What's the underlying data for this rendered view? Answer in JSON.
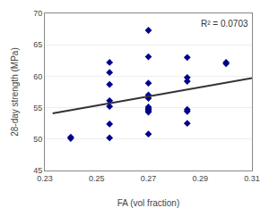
{
  "chart_data": {
    "type": "scatter",
    "xlabel": "FA (vol fraction)",
    "ylabel": "28-day strength (MPa)",
    "annotation": "R² = 0.0703",
    "xlim": [
      0.23,
      0.31
    ],
    "ylim": [
      45,
      70
    ],
    "xticks": [
      0.23,
      0.25,
      0.27,
      0.29,
      0.31
    ],
    "yticks": [
      45,
      50,
      55,
      60,
      65,
      70
    ],
    "grid": "y",
    "series": [
      {
        "type": "scatter",
        "color": "#00008B",
        "marker": "diamond",
        "x": [
          0.24,
          0.24,
          0.255,
          0.255,
          0.255,
          0.255,
          0.255,
          0.255,
          0.255,
          0.27,
          0.27,
          0.27,
          0.27,
          0.27,
          0.27,
          0.27,
          0.27,
          0.27,
          0.27,
          0.27,
          0.285,
          0.285,
          0.285,
          0.285,
          0.285,
          0.285,
          0.3,
          0.3
        ],
        "values": [
          50.3,
          50.1,
          62.2,
          60.6,
          58.7,
          56.1,
          55.2,
          52.4,
          50.2,
          67.3,
          63.1,
          58.9,
          57.0,
          56.5,
          55.1,
          54.8,
          54.7,
          54.5,
          54.3,
          50.8,
          63.0,
          59.8,
          59.2,
          54.7,
          54.4,
          52.5,
          62.2,
          62.0
        ]
      },
      {
        "type": "line",
        "color": "#333333",
        "line_style": "solid",
        "x": [
          0.233,
          0.31
        ],
        "values": [
          54.1,
          59.7
        ]
      }
    ]
  }
}
